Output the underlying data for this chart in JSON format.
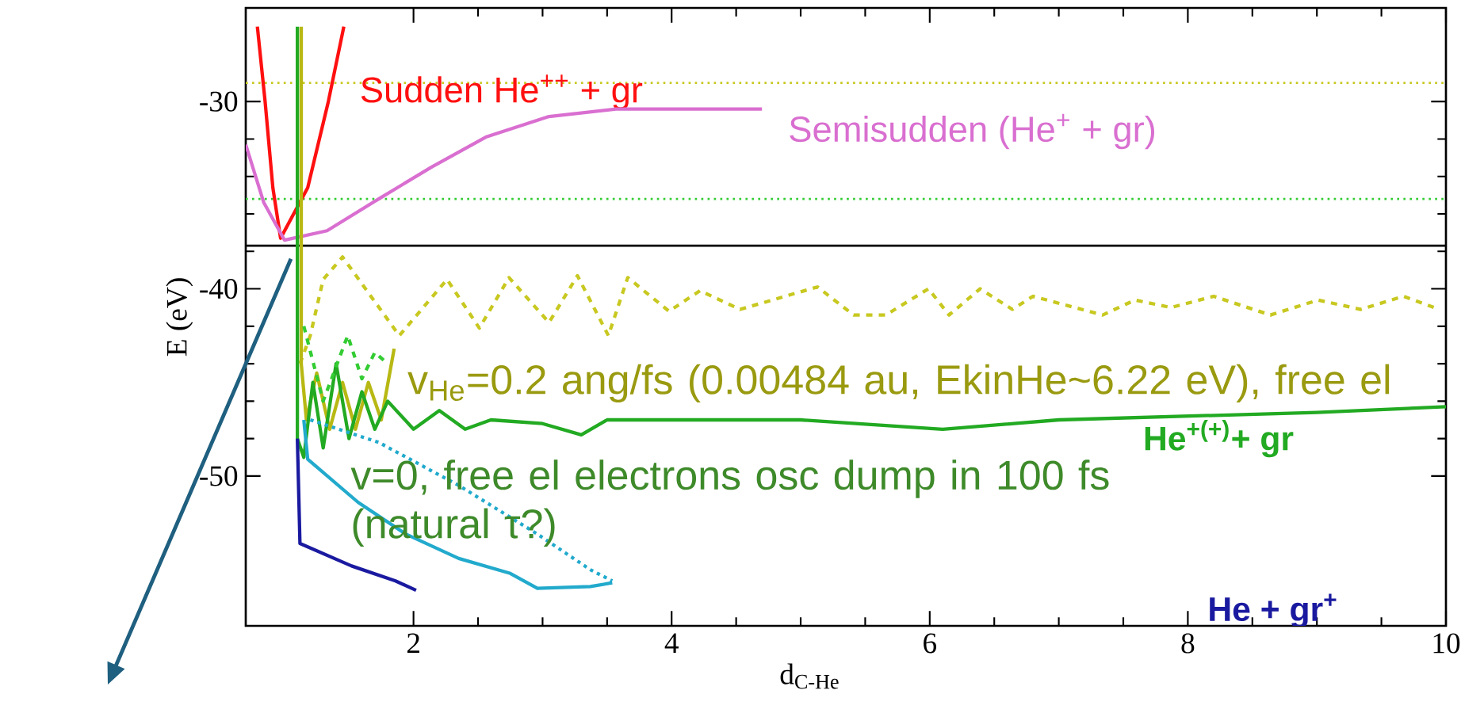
{
  "chart_data": {
    "type": "line",
    "xlabel": "d$_{C-He}$",
    "ylabel": "E (eV)",
    "xlim": [
      0.7,
      10
    ],
    "ylim": [
      -58,
      -25
    ],
    "xticks": [
      2,
      4,
      6,
      8,
      10
    ],
    "yticks": [
      -30,
      -40,
      -50
    ],
    "line_style": "solid",
    "series": [
      {
        "name": "Sudden He$^{++}$ + gr",
        "color": "#ff1010",
        "x": [
          0.79,
          0.85,
          0.91,
          0.97,
          1.18,
          1.34,
          1.46
        ],
        "values": [
          -26,
          -30,
          -34.6,
          -37.3,
          -34.6,
          -30,
          -26
        ]
      },
      {
        "name": "Semisudden  (He$^{+}$ + gr)",
        "color": "#d96fd0",
        "x": [
          0.7,
          0.84,
          1.0,
          1.33,
          1.73,
          2.14,
          2.56,
          3.05,
          3.57,
          4.7
        ],
        "values": [
          -32.3,
          -35.4,
          -37.4,
          -36.9,
          -35.2,
          -33.5,
          -31.9,
          -30.8,
          -30.4,
          -30.4
        ]
      },
      {
        "color": "#c8c820",
        "line_style": "dashed",
        "x": [
          1.12,
          1.2,
          1.3,
          1.45,
          1.89,
          2.26,
          2.51,
          2.74,
          3.05,
          3.27,
          3.51,
          3.66,
          3.98,
          4.22,
          4.53,
          5.13,
          5.41,
          5.66,
          5.99,
          6.15,
          6.39,
          6.64,
          6.8,
          7.34,
          7.59,
          7.87,
          8.2,
          8.64,
          9.01,
          9.34,
          9.67,
          9.95
        ],
        "values": [
          -44,
          -42.5,
          -39.5,
          -38.3,
          -42.5,
          -39.5,
          -42.1,
          -39.4,
          -41.8,
          -39.3,
          -42.5,
          -39.4,
          -41.2,
          -40.1,
          -41.1,
          -39.9,
          -41.4,
          -41.4,
          -40,
          -41.4,
          -40,
          -41.1,
          -40.4,
          -41.4,
          -40.6,
          -41,
          -40.4,
          -41.4,
          -40.6,
          -41.1,
          -40.4,
          -41.1
        ]
      },
      {
        "color": "#b8b814",
        "x": [
          1.13,
          1.13,
          1.17,
          1.25,
          1.35,
          1.45,
          1.55,
          1.65,
          1.75,
          1.85
        ],
        "values": [
          -26,
          -44,
          -47,
          -44.5,
          -47.5,
          -45,
          -47.5,
          -45,
          -47,
          -43.2
        ]
      },
      {
        "name": "He$^{+(+)}$+ gr",
        "color": "#22aa22",
        "x": [
          1.1,
          1.1,
          1.15,
          1.22,
          1.3,
          1.4,
          1.5,
          1.6,
          1.7,
          1.8,
          2.0,
          2.2,
          2.4,
          2.6,
          3.0,
          3.3,
          3.5,
          4.0,
          5.0,
          6.1,
          7.0,
          8.0,
          9.0,
          10.0
        ],
        "values": [
          -26,
          -48,
          -49,
          -45,
          -48.5,
          -44,
          -48,
          -45.5,
          -47.5,
          -46,
          -47.5,
          -46.5,
          -47.5,
          -47,
          -47.2,
          -47.8,
          -47,
          -47,
          -47,
          -47.5,
          -47,
          -46.8,
          -46.6,
          -46.3
        ]
      },
      {
        "color": "#33cc33",
        "line_style": "dashed",
        "x": [
          1.15,
          1.3,
          1.49,
          1.6,
          1.7,
          1.8
        ],
        "values": [
          -42,
          -46,
          -42.5,
          -44.8,
          -43.4,
          -44
        ]
      },
      {
        "color": "#22aacc",
        "x": [
          1.15,
          1.18,
          1.57,
          1.94,
          2.35,
          2.75,
          2.96,
          3.37,
          3.54
        ],
        "values": [
          -47,
          -49.1,
          -51.4,
          -53.1,
          -54.4,
          -55.2,
          -56,
          -55.9,
          -55.7
        ]
      },
      {
        "color": "#22aacc",
        "line_style": "dotted",
        "x": [
          1.2,
          1.73,
          2.35,
          2.96,
          3.37,
          3.54
        ],
        "values": [
          -47,
          -48.2,
          -50.5,
          -53.1,
          -55,
          -55.6
        ]
      },
      {
        "name": "He + gr$^{+}$",
        "color": "#1a1aa0",
        "x": [
          1.1,
          1.12,
          1.52,
          1.86,
          2.02
        ],
        "values": [
          -48,
          -53.6,
          -54.8,
          -55.6,
          -56.1
        ]
      }
    ],
    "ref_lines": [
      {
        "axis": "y",
        "value": -37.7,
        "color": "#000000",
        "line_style": "solid"
      },
      {
        "axis": "y",
        "value": -29,
        "color": "#c8c820",
        "line_style": "dotted"
      },
      {
        "axis": "y",
        "value": -35.2,
        "color": "#33cc33",
        "line_style": "dotted"
      }
    ],
    "annotations": [
      "v$_{He}$=0.2 ang/fs (0.00484 au, EkinHe~6.22 eV), free el",
      "v=0, free el electrons osc dump in 100 fs (natural τ?)"
    ]
  }
}
